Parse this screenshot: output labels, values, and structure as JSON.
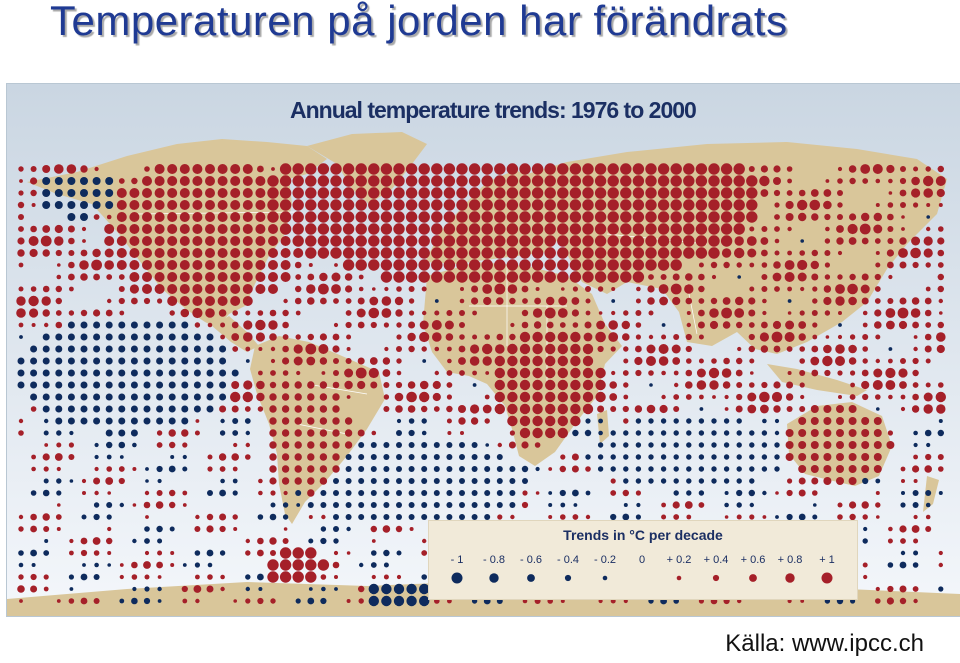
{
  "slide": {
    "title": "Temperaturen på jorden har förändrats",
    "source": "Källa: www.ipcc.ch"
  },
  "map": {
    "heading": "Annual temperature trends:  1976 to 2000",
    "colors": {
      "ocean_top": "#cad6e2",
      "ocean_bottom": "#f4f7fb",
      "land": "#d9c69a",
      "border": "#ffffff",
      "warming": "#a52029",
      "cooling": "#0e2b5d"
    },
    "legend": {
      "title": "Trends in °C per decade",
      "labels": [
        "- 1",
        "- 0.8",
        "- 0.6",
        "- 0.4",
        "- 0.2",
        "0",
        "+ 0.2",
        "+ 0.4",
        "+ 0.6",
        "+ 0.8",
        "+ 1"
      ],
      "values": [
        -1,
        -0.8,
        -0.6,
        -0.4,
        -0.2,
        0,
        0.2,
        0.4,
        0.6,
        0.8,
        1
      ]
    }
  }
}
